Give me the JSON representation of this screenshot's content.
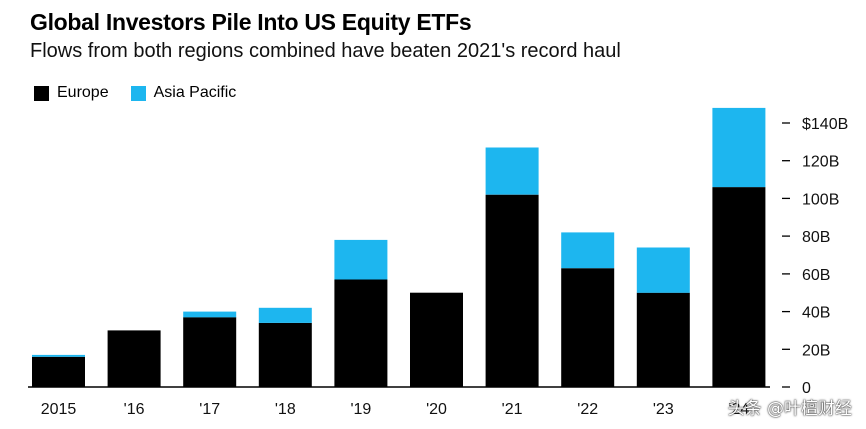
{
  "colors": {
    "europe": "#000000",
    "asia_pacific": "#1db6ef",
    "axis": "#000000"
  },
  "watermark": "头条 @叶檀财经",
  "chart_data": {
    "type": "bar",
    "stacked": true,
    "title": "Global Investors Pile Into US Equity ETFs",
    "subtitle": "Flows from both regions combined have beaten 2021's record haul",
    "categories": [
      "2015",
      "'16",
      "'17",
      "'18",
      "'19",
      "'20",
      "'21",
      "'22",
      "'23",
      "'24"
    ],
    "series": [
      {
        "name": "Europe",
        "values": [
          16,
          30,
          37,
          34,
          57,
          50,
          102,
          63,
          50,
          106
        ]
      },
      {
        "name": "Asia Pacific",
        "values": [
          1,
          0,
          3,
          8,
          21,
          0,
          25,
          19,
          24,
          42
        ]
      }
    ],
    "ylim": [
      0,
      140
    ],
    "yticks": [
      0,
      20,
      40,
      60,
      80,
      100,
      120,
      140
    ],
    "ytick_labels": [
      "0",
      "20B",
      "40B",
      "60B",
      "80B",
      "100B",
      "120B",
      "$140B"
    ],
    "legend_position": "top-left",
    "y_axis_side": "right",
    "grid": false
  }
}
